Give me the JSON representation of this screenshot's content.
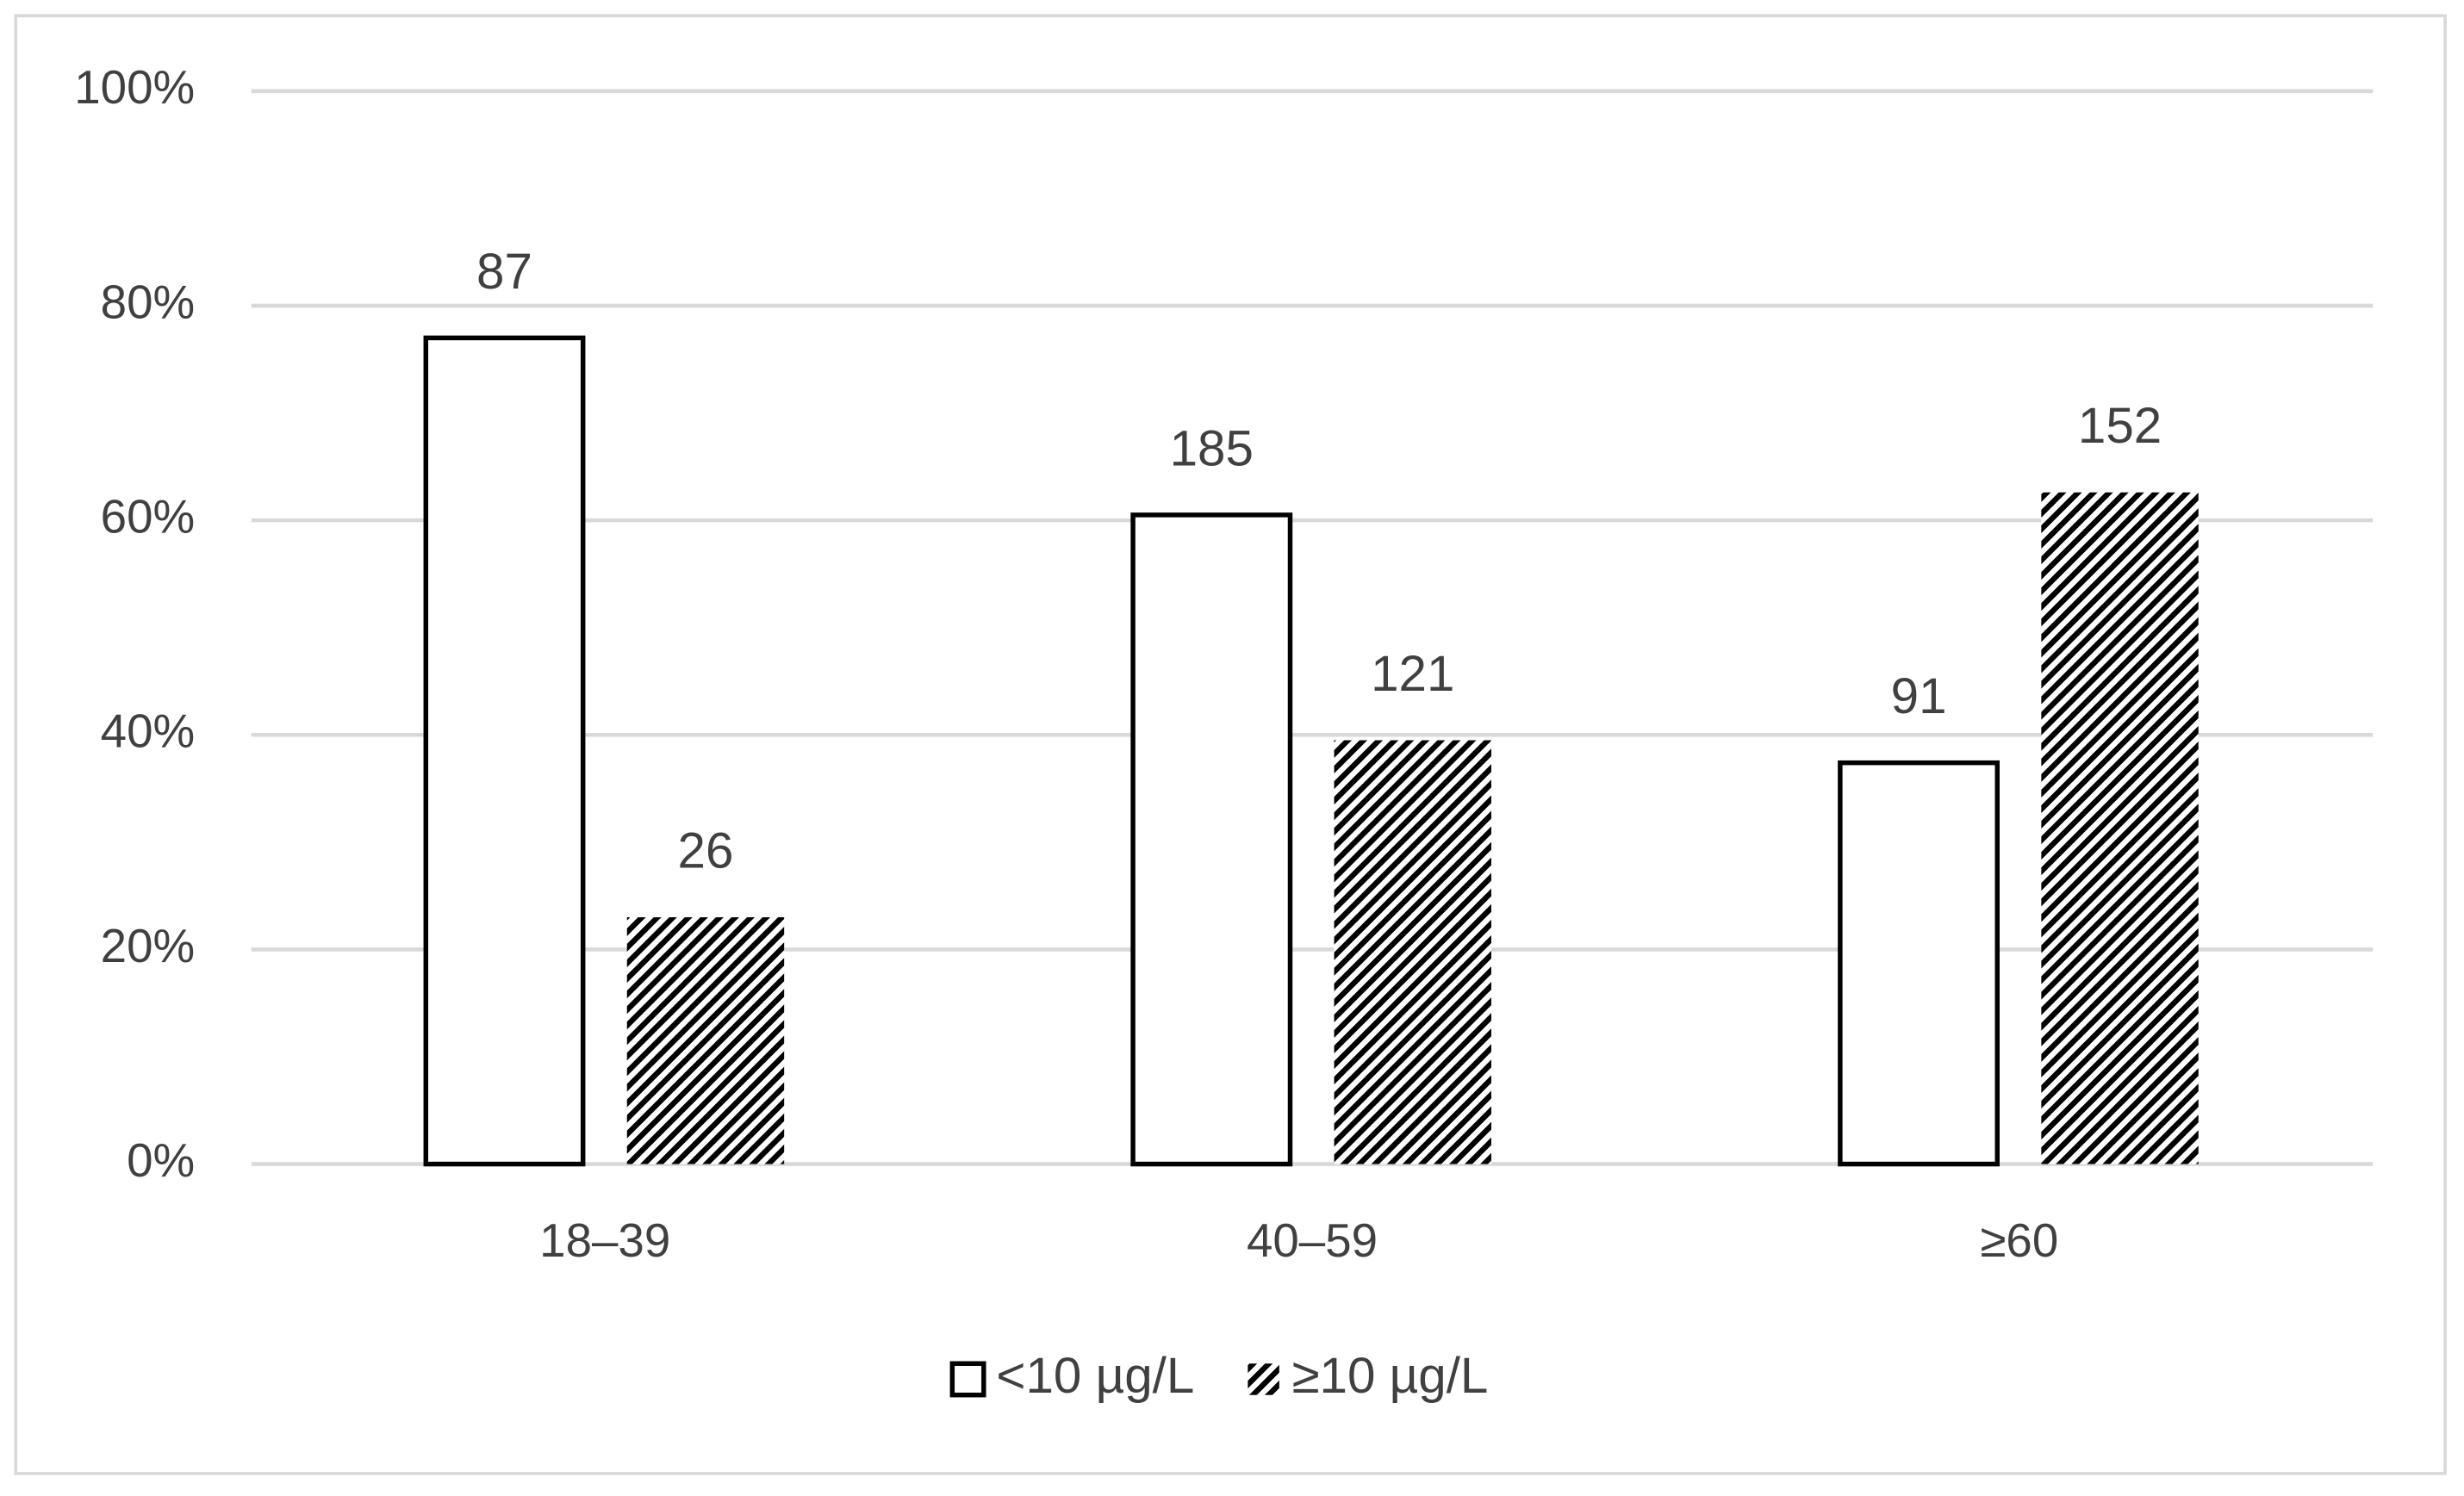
{
  "chart_data": {
    "type": "bar",
    "categories": [
      "18–39",
      "40–59",
      "≥60"
    ],
    "series": [
      {
        "name": "<10 µg/L",
        "color": "#000000",
        "pattern": "solid",
        "values": [
          77.0,
          60.5,
          37.4
        ],
        "value_labels": [
          "87",
          "185",
          "91"
        ]
      },
      {
        "name": "≥10 µg/L",
        "color": "#000000",
        "pattern": "hatch",
        "values": [
          23.0,
          39.5,
          62.6
        ],
        "value_labels": [
          "26",
          "121",
          "152"
        ]
      }
    ],
    "ylim": [
      0,
      100
    ],
    "yticks": [
      {
        "value": 0,
        "label": "0%"
      },
      {
        "value": 20,
        "label": "20%"
      },
      {
        "value": 40,
        "label": "40%"
      },
      {
        "value": 60,
        "label": "60%"
      },
      {
        "value": 80,
        "label": "80%"
      },
      {
        "value": 100,
        "label": "100%"
      }
    ],
    "grid": true,
    "legend": "bottom"
  }
}
